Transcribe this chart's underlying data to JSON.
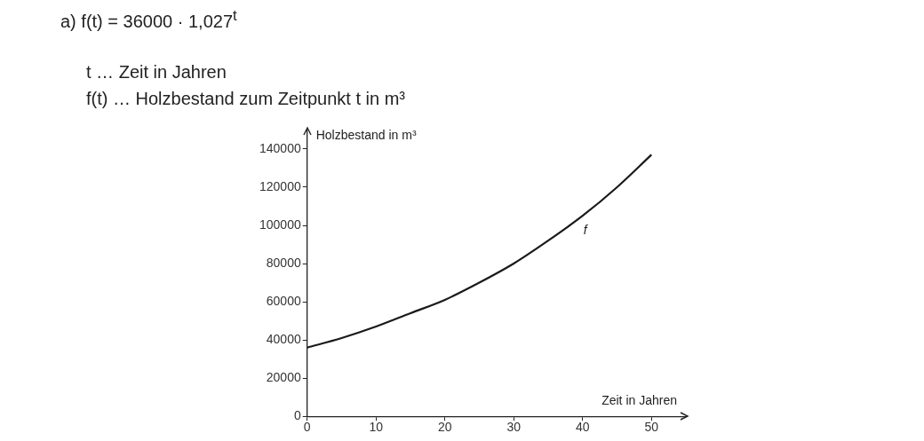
{
  "chart_data": {
    "type": "line",
    "title": "a) f(t) = 36000 · 1,027$^{t}$",
    "annotations": [
      "t … Zeit in Jahren",
      "f(t) … Holzbestand zum Zeitpunkt t in m³",
      {
        "text": "f",
        "x": 40,
        "y": 105000
      }
    ],
    "xlabel": "Zeit in Jahren",
    "ylabel": "Holzbestand in m³",
    "x": [
      0,
      5,
      10,
      15,
      20,
      25,
      30,
      35,
      40,
      45,
      50
    ],
    "series": [
      {
        "color": "#1a1a1a",
        "values": [
          36000,
          41000,
          47000,
          54000,
          61000,
          70000,
          80000,
          92000,
          105000,
          120000,
          137000
        ]
      }
    ],
    "xlim": [
      0,
      55
    ],
    "xticks": [
      0,
      10,
      20,
      30,
      40,
      50
    ],
    "ylim": [
      0,
      150000
    ],
    "yticks": [
      0,
      20000,
      40000,
      60000,
      80000,
      100000,
      120000,
      140000
    ],
    "grid": false,
    "legend": false,
    "marker": "none",
    "line_style": "solid"
  }
}
